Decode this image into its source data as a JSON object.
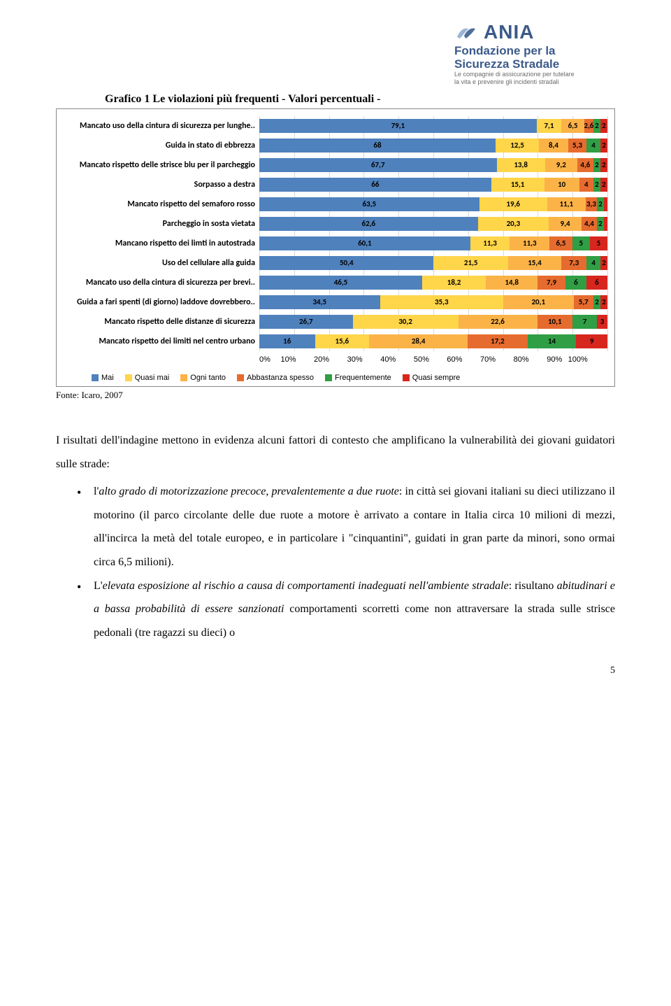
{
  "logo": {
    "brand": "ANIA",
    "line1a": "Fondazione per la",
    "line1b": "Sicurezza Stradale",
    "line2a": "Le compagnie di assicurazione per tutelare",
    "line2b": "la vita e prevenire gli incidenti stradali"
  },
  "chart": {
    "title": "Grafico 1 Le violazioni più frequenti  - Valori percentuali -",
    "type": "stacked-bar-horizontal",
    "xlim": [
      0,
      100
    ],
    "xtick_step": 10,
    "xtick_labels": [
      "0%",
      "10%",
      "20%",
      "30%",
      "40%",
      "50%",
      "60%",
      "70%",
      "80%",
      "90%",
      "100%"
    ],
    "grid_color": "#d9d9d9",
    "border_color": "#888888",
    "background_color": "#ffffff",
    "label_font": "Calibri",
    "label_fontsize": 12,
    "value_fontsize": 11,
    "series": [
      {
        "name": "Mai",
        "color": "#4f81bd"
      },
      {
        "name": "Quasi mai",
        "color": "#ffd54a"
      },
      {
        "name": "Ogni tanto",
        "color": "#fbb348"
      },
      {
        "name": "Abbastanza spesso",
        "color": "#e66b2e"
      },
      {
        "name": "Frequentemente",
        "color": "#2f9e44"
      },
      {
        "name": "Quasi sempre",
        "color": "#d7261e"
      }
    ],
    "rows": [
      {
        "label": "Mancato uso della cintura di sicurezza per lunghe..",
        "values": [
          79.1,
          7.1,
          6.5,
          2.6,
          2,
          2
        ]
      },
      {
        "label": "Guida in stato di ebbrezza",
        "values": [
          68,
          12.5,
          8.4,
          5.3,
          4,
          2
        ]
      },
      {
        "label": "Mancato rispetto delle strisce blu per il parcheggio",
        "values": [
          67.7,
          13.8,
          9.2,
          4.6,
          2,
          2
        ]
      },
      {
        "label": "Sorpasso a destra",
        "values": [
          66,
          15.1,
          10,
          4,
          2,
          2
        ]
      },
      {
        "label": "Mancato rispetto del semaforo rosso",
        "values": [
          63.5,
          19.6,
          11.1,
          3.3,
          2,
          1
        ]
      },
      {
        "label": "Parcheggio in sosta vietata",
        "values": [
          62.6,
          20.3,
          9.4,
          4.4,
          2,
          1
        ]
      },
      {
        "label": "Mancano rispetto dei limti in autostrada",
        "values": [
          60.1,
          11.3,
          11.3,
          6.5,
          5,
          5
        ]
      },
      {
        "label": "Uso del cellulare alla guida",
        "values": [
          50.4,
          21.5,
          15.4,
          7.3,
          4,
          2
        ]
      },
      {
        "label": "Mancato uso della cintura di sicurezza per brevi..",
        "values": [
          46.5,
          18.2,
          14.8,
          7.9,
          6,
          6
        ]
      },
      {
        "label": "Guida a fari spenti (di giorno) laddove dovrebbero..",
        "values": [
          34.5,
          35.3,
          20.1,
          5.7,
          2,
          2
        ]
      },
      {
        "label": "Mancato rispetto delle distanze di sicurezza",
        "values": [
          26.7,
          30.2,
          22.6,
          10.1,
          7,
          3
        ]
      },
      {
        "label": "Mancato rispetto dei limiti nel centro urbano",
        "values": [
          16,
          15.6,
          28.4,
          17.2,
          14,
          9
        ]
      }
    ]
  },
  "source": "Fonte: Icaro, 2007",
  "body": {
    "intro": "I risultati dell'indagine mettono in evidenza alcuni fattori di contesto che amplificano la vulnerabilità dei giovani guidatori sulle strade:",
    "bullet1_a": "l'",
    "bullet1_em": "alto grado di motorizzazione precoce, prevalentemente a due ruote",
    "bullet1_b": ": in città sei giovani italiani su dieci utilizzano il motorino (il parco circolante delle due ruote a motore è arrivato a contare in Italia circa 10 milioni di mezzi, all'incirca la metà del totale europeo, e in particolare i \"cinquantini\", guidati in gran parte da minori, sono ormai circa 6,5 milioni).",
    "bullet2_a": "L'",
    "bullet2_em1": "elevata esposizione al rischio a causa di comportamenti inadeguati nell'ambiente stradale",
    "bullet2_mid": ": risultano ",
    "bullet2_em2": "abitudinari e a bassa probabilità di essere sanzionati",
    "bullet2_b": " comportamenti scorretti come non attraversare la strada sulle strisce pedonali (tre ragazzi su dieci) o"
  },
  "page_number": "5"
}
